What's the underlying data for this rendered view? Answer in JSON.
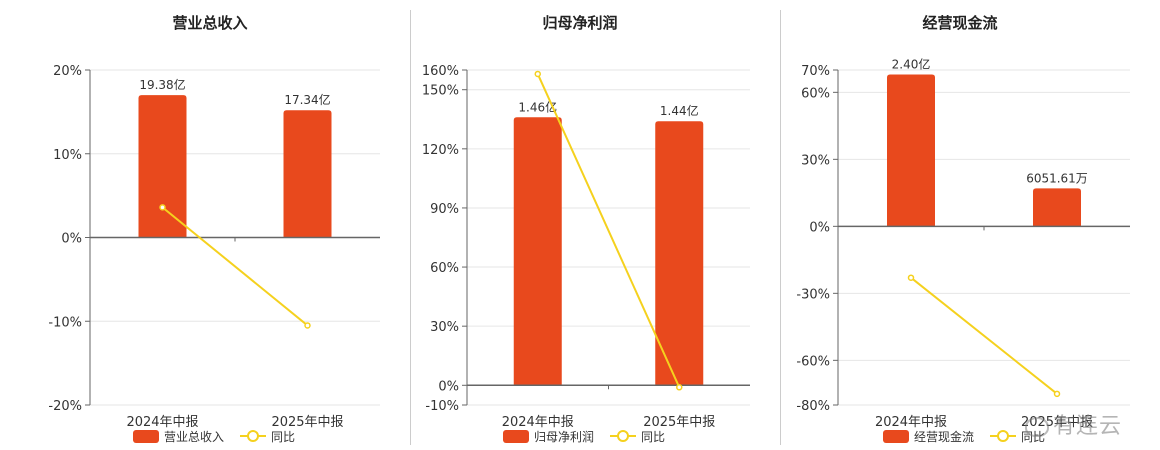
{
  "colors": {
    "bar": "#E8491D",
    "line": "#F5D11E",
    "axis": "#666666",
    "grid": "#e6e6e6",
    "text": "#333333"
  },
  "watermark": "有连云",
  "chart_data": [
    {
      "type": "bar",
      "title": "营业总收入",
      "categories": [
        "2024年中报",
        "2025年中报"
      ],
      "series": [
        {
          "name": "营业总收入",
          "type": "bar",
          "values": [
            19.38,
            17.34
          ],
          "labels": [
            "19.38亿",
            "17.34亿"
          ]
        },
        {
          "name": "同比",
          "type": "line",
          "values": [
            3.6,
            -10.5
          ]
        }
      ],
      "bar_scale_pct": [
        17.0,
        15.2
      ],
      "yticks": [
        20,
        10,
        0,
        -10,
        -20
      ],
      "ylim": [
        -20,
        20
      ],
      "ytick_suffix": "%",
      "grid": true,
      "legend": "bottom"
    },
    {
      "type": "bar",
      "title": "归母净利润",
      "categories": [
        "2024年中报",
        "2025年中报"
      ],
      "series": [
        {
          "name": "归母净利润",
          "type": "bar",
          "values": [
            1.46,
            1.44
          ],
          "labels": [
            "1.46亿",
            "1.44亿"
          ]
        },
        {
          "name": "同比",
          "type": "line",
          "values": [
            158,
            -1
          ]
        }
      ],
      "bar_scale_pct": [
        136,
        134
      ],
      "yticks": [
        160,
        150,
        120,
        90,
        60,
        30,
        0,
        -10
      ],
      "ylim": [
        -10,
        160
      ],
      "ytick_suffix": "%",
      "grid": true,
      "legend": "bottom"
    },
    {
      "type": "bar",
      "title": "经营现金流",
      "categories": [
        "2024年中报",
        "2025年中报"
      ],
      "series": [
        {
          "name": "经营现金流",
          "type": "bar",
          "values": [
            2.4,
            0.605161
          ],
          "labels": [
            "2.40亿",
            "6051.61万"
          ]
        },
        {
          "name": "同比",
          "type": "line",
          "values": [
            -23,
            -75
          ]
        }
      ],
      "bar_scale_pct": [
        68,
        17
      ],
      "yticks": [
        70,
        60,
        30,
        0,
        -30,
        -60,
        -80
      ],
      "ylim": [
        -80,
        70
      ],
      "ytick_suffix": "%",
      "grid": true,
      "legend": "bottom"
    }
  ]
}
